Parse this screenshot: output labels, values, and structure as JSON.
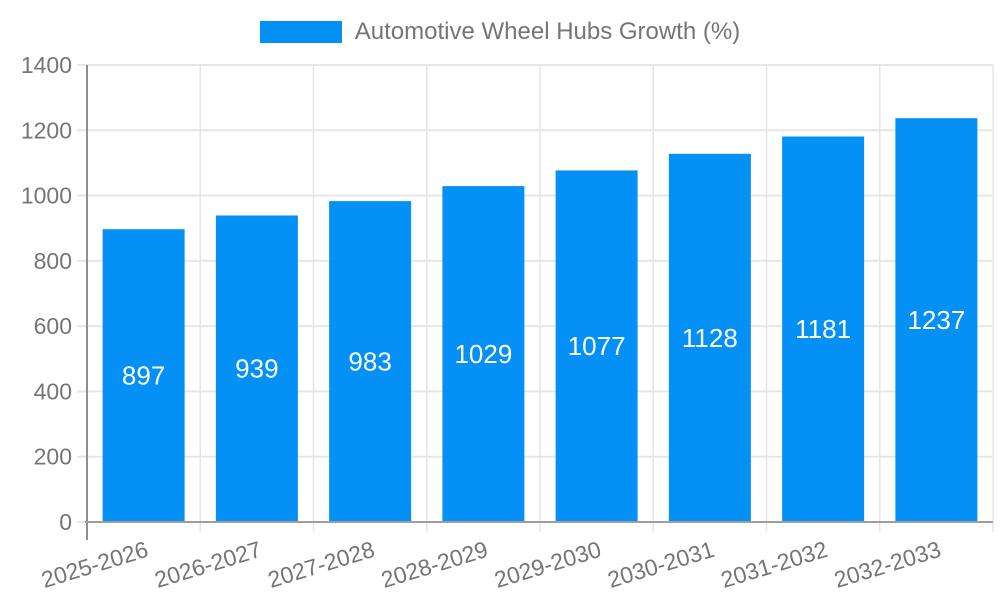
{
  "chart_data": {
    "type": "bar",
    "title": "Automotive Wheel Hubs Growth (%)",
    "legend_position": "top",
    "categories": [
      "2025-2026",
      "2026-2027",
      "2027-2028",
      "2028-2029",
      "2029-2030",
      "2030-2031",
      "2031-2032",
      "2032-2033"
    ],
    "values": [
      897,
      939,
      983,
      1029,
      1077,
      1128,
      1181,
      1237
    ],
    "xlabel": "",
    "ylabel": "",
    "ylim": [
      0,
      1400
    ],
    "yticks": [
      0,
      200,
      400,
      600,
      800,
      1000,
      1200,
      1400
    ],
    "grid": true,
    "colors": {
      "bar": "#0590f5",
      "bar_value_label": "#ffffff",
      "axis_text": "#757575",
      "grid_line": "#e6e6e6",
      "axis_line": "#8f8f8f",
      "baseline": "#9e9e9e",
      "background": "#ffffff"
    }
  }
}
